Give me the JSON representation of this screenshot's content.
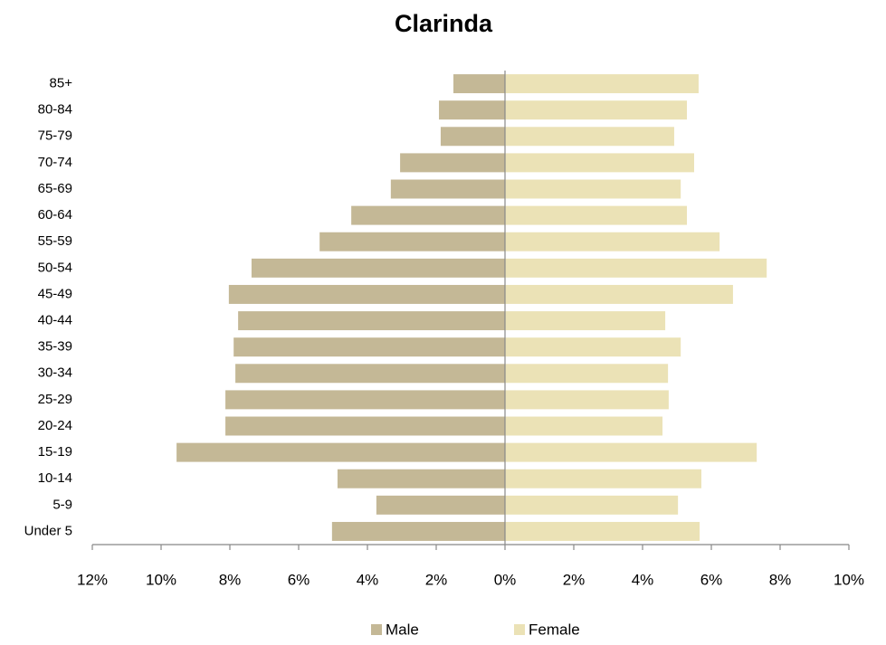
{
  "chart_data": {
    "type": "pyramid",
    "title": "Clarinda",
    "categories": [
      "Under 5",
      "5-9",
      "10-14",
      "15-19",
      "20-24",
      "25-29",
      "30-34",
      "35-39",
      "40-44",
      "45-49",
      "50-54",
      "55-59",
      "60-64",
      "65-69",
      "70-74",
      "75-79",
      "80-84",
      "85+"
    ],
    "series": [
      {
        "name": "Male",
        "color": "#c4b896",
        "values": [
          -5.03,
          -3.74,
          -4.87,
          -9.55,
          -8.13,
          -8.13,
          -7.84,
          -7.89,
          -7.76,
          -8.03,
          -7.37,
          -5.39,
          -4.47,
          -3.32,
          -3.05,
          -1.87,
          -1.92,
          -1.5
        ]
      },
      {
        "name": "Female",
        "color": "#ebe2b6",
        "values": [
          5.66,
          5.03,
          5.71,
          7.32,
          4.58,
          4.76,
          4.74,
          5.11,
          4.66,
          6.63,
          7.61,
          6.24,
          5.29,
          5.11,
          5.5,
          4.92,
          5.29,
          5.63
        ]
      }
    ],
    "xlim": [
      -12,
      10
    ],
    "xticks": [
      {
        "value": -12,
        "label": "12%"
      },
      {
        "value": -10,
        "label": "10%"
      },
      {
        "value": -8,
        "label": "8%"
      },
      {
        "value": -6,
        "label": "6%"
      },
      {
        "value": -4,
        "label": "4%"
      },
      {
        "value": -2,
        "label": "2%"
      },
      {
        "value": 0,
        "label": "0%"
      },
      {
        "value": 2,
        "label": "2%"
      },
      {
        "value": 4,
        "label": "4%"
      },
      {
        "value": 6,
        "label": "6%"
      },
      {
        "value": 8,
        "label": "8%"
      },
      {
        "value": 10,
        "label": "10%"
      }
    ],
    "legend": "bottom"
  }
}
